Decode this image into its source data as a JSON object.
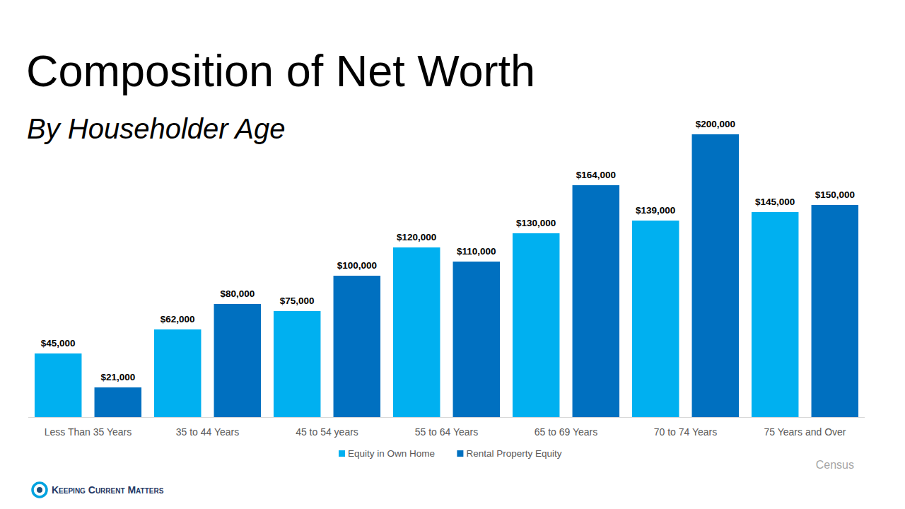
{
  "chart_data": {
    "type": "bar",
    "title": "Composition of Net Worth",
    "subtitle": "By Householder Age",
    "source": "Census",
    "logo": "Keeping Current Matters",
    "categories": [
      "Less Than 35 Years",
      "35 to 44 Years",
      "45 to 54 years",
      "55 to 64 Years",
      "65 to 69 Years",
      "70 to 74 Years",
      "75 Years and Over"
    ],
    "series": [
      {
        "name": "Equity in Own Home",
        "color": "#00b0f0",
        "values": [
          45000,
          62000,
          75000,
          120000,
          130000,
          139000,
          145000
        ],
        "value_labels": [
          "$45,000",
          "$62,000",
          "$75,000",
          "$120,000",
          "$130,000",
          "$139,000",
          "$145,000"
        ]
      },
      {
        "name": "Rental Property Equity",
        "color": "#0070c0",
        "values": [
          21000,
          80000,
          100000,
          110000,
          164000,
          200000,
          150000
        ],
        "value_labels": [
          "$21,000",
          "$80,000",
          "$100,000",
          "$110,000",
          "$164,000",
          "$200,000",
          "$150,000"
        ]
      }
    ],
    "ylim": [
      0,
      200000
    ],
    "grid": false,
    "legend": "bottom",
    "data_labels": true,
    "tick_labels": "x"
  }
}
